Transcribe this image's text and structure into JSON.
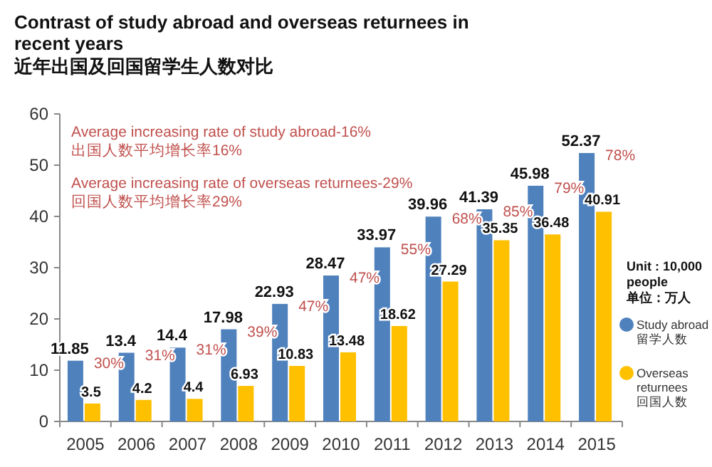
{
  "chart_data": {
    "type": "bar",
    "title": "Contrast of study abroad and overseas returnees in recent years",
    "subtitle": "近年出国及回国留学生人数对比",
    "categories": [
      "2005",
      "2006",
      "2007",
      "2008",
      "2009",
      "2010",
      "2011",
      "2012",
      "2013",
      "2014",
      "2015"
    ],
    "series": [
      {
        "name": "Study abroad\n留学人数",
        "color": "#4f81bd",
        "values": [
          11.85,
          13.4,
          14.4,
          17.98,
          22.93,
          28.47,
          33.97,
          39.96,
          41.39,
          45.98,
          52.37
        ]
      },
      {
        "name": "Overseas\nreturnees\n回国人数",
        "color": "#ffc000",
        "values": [
          3.5,
          4.2,
          4.4,
          6.93,
          10.83,
          13.48,
          18.62,
          27.29,
          35.35,
          36.48,
          40.91
        ]
      }
    ],
    "ylim": [
      0,
      60
    ],
    "yticks": [
      0,
      10,
      20,
      30,
      40,
      50,
      60
    ],
    "data_labels": true,
    "legend": "right",
    "grid": false,
    "annotations": [
      "Average increasing rate of study abroad-16%\n出国人数平均增长率16%",
      "Average increasing rate of overseas returnees-29%\n回国人数平均增长率29%",
      "Unit : 10,000\npeople\n单位：万人",
      "30%",
      "31%",
      "31%",
      "39%",
      "47%",
      "47%",
      "55%",
      "68%",
      "85%",
      "79%",
      "78%"
    ]
  }
}
